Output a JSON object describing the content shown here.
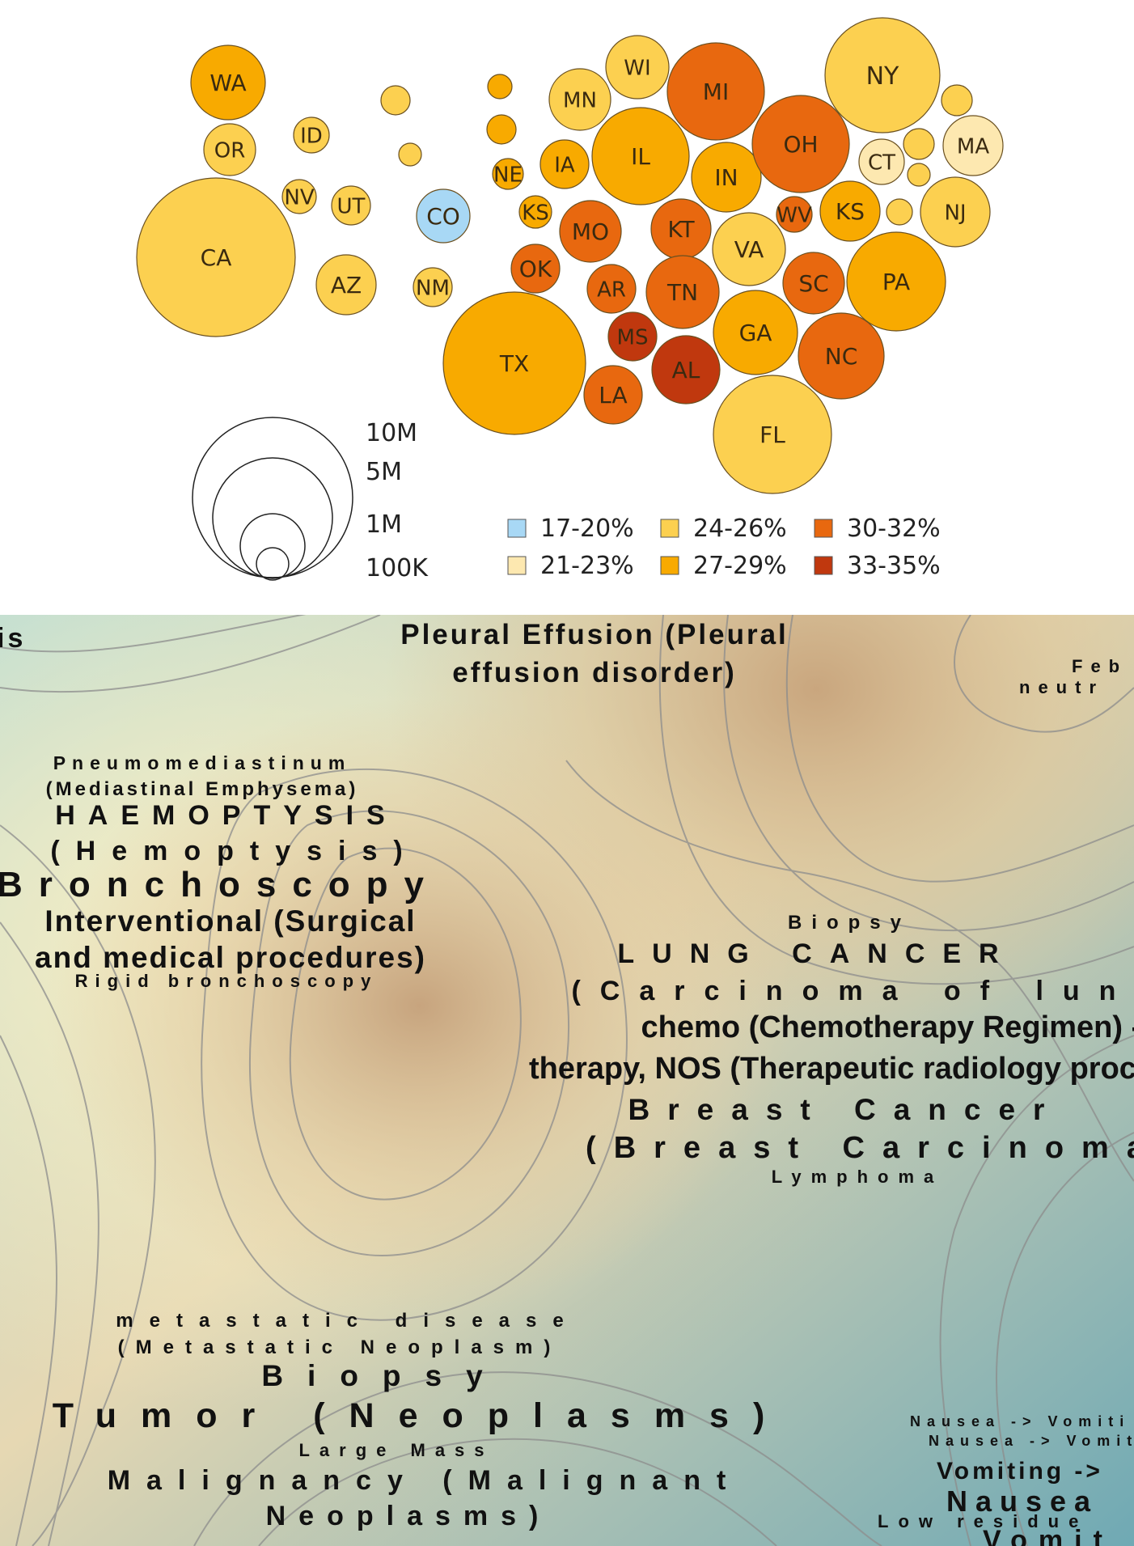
{
  "chart_data": [
    {
      "type": "bubble-map",
      "categories": [
        "WA",
        "OR",
        "ID",
        "NV",
        "UT",
        "CA",
        "AZ",
        "NM",
        "CO",
        "NE",
        "KS",
        "OK",
        "TX",
        "MN",
        "IA",
        "MO",
        "AR",
        "LA",
        "MS",
        "WI",
        "IL",
        "IN",
        "KT",
        "TN",
        "AL",
        "MI",
        "OH",
        "WV",
        "VA",
        "GA",
        "SC",
        "NC",
        "FL",
        "KS",
        "PA",
        "NY",
        "CT",
        "MA",
        "NJ"
      ],
      "legend": {
        "size": [
          "10M",
          "5M",
          "1M",
          "100K"
        ],
        "color": [
          {
            "label": "17-20%",
            "color": "#a8d8f5"
          },
          {
            "label": "24-26%",
            "color": "#fcd050"
          },
          {
            "label": "30-32%",
            "color": "#e8680f"
          },
          {
            "label": "21-23%",
            "color": "#fde8b0"
          },
          {
            "label": "27-29%",
            "color": "#f8aa00"
          },
          {
            "label": "33-35%",
            "color": "#c0380e"
          }
        ]
      }
    },
    {
      "type": "terrain-word-map",
      "terms": [
        "is",
        "Pleural Effusion (Pleural",
        "effusion disorder)",
        "Feb",
        "neutr",
        "Pneumomediastinum",
        "(Mediastinal Emphysema)",
        "HAEMOPTYSIS",
        "(Hemoptysis)",
        "Bronchoscopy",
        "Interventional (Surgical",
        "and medical procedures)",
        "Rigid bronchoscopy",
        "Biopsy",
        "LUNG CANCER",
        "(Carcinoma of lung)",
        "chemo (Chemotherapy Regimen) -> Radia",
        "therapy, NOS (Therapeutic radiology proce",
        "Breast Cancer",
        "(Breast Carcinoma",
        "Lymphoma",
        "metastatic disease",
        "(Metastatic Neoplasm)",
        "Biopsy",
        "Tumor (Neoplasms)",
        "Large Mass",
        "Malignancy (Malignant",
        "Neoplasms)",
        "Nausea -> Vomiti",
        "Nausea -> Vomit",
        "Vomiting ->",
        "Nausea",
        "Low residue",
        "Vomit"
      ]
    }
  ]
}
